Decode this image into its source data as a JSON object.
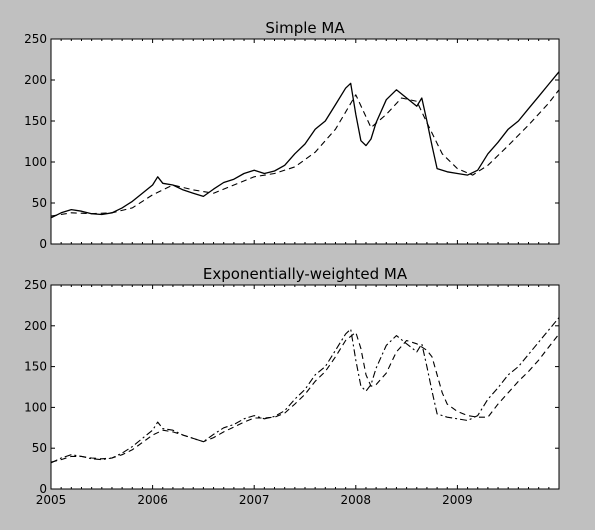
{
  "chart_data": [
    {
      "type": "line",
      "title": "Simple MA",
      "xlabel": "",
      "ylabel": "",
      "ylim": [
        0,
        250
      ],
      "yticks": [
        "0",
        "50",
        "100",
        "150",
        "200",
        "250"
      ],
      "xlim": [
        2005.0,
        2010.0
      ],
      "xticks": [],
      "grid": false,
      "legend": "none",
      "series": [
        {
          "style": "solid",
          "x": [
            2005.0,
            2005.1,
            2005.2,
            2005.3,
            2005.4,
            2005.5,
            2005.6,
            2005.7,
            2005.8,
            2005.9,
            2006.0,
            2006.05,
            2006.1,
            2006.2,
            2006.3,
            2006.4,
            2006.5,
            2006.6,
            2006.7,
            2006.8,
            2006.9,
            2007.0,
            2007.1,
            2007.2,
            2007.3,
            2007.4,
            2007.5,
            2007.6,
            2007.7,
            2007.8,
            2007.9,
            2007.95,
            2008.0,
            2008.05,
            2008.1,
            2008.15,
            2008.2,
            2008.3,
            2008.4,
            2008.5,
            2008.6,
            2008.65,
            2008.7,
            2008.75,
            2008.8,
            2008.9,
            2009.0,
            2009.1,
            2009.2,
            2009.3,
            2009.4,
            2009.5,
            2009.6,
            2009.7,
            2009.8,
            2009.9,
            2010.0
          ],
          "y": [
            32,
            38,
            42,
            40,
            37,
            36,
            38,
            44,
            52,
            62,
            72,
            82,
            74,
            72,
            66,
            62,
            58,
            67,
            75,
            79,
            86,
            90,
            86,
            89,
            96,
            110,
            122,
            140,
            150,
            170,
            190,
            196,
            158,
            126,
            120,
            128,
            148,
            176,
            188,
            178,
            168,
            178,
            150,
            120,
            92,
            88,
            86,
            84,
            90,
            110,
            124,
            140,
            150,
            165,
            180,
            195,
            210
          ]
        },
        {
          "style": "dashed",
          "x": [
            2005.0,
            2005.2,
            2005.4,
            2005.6,
            2005.8,
            2006.0,
            2006.2,
            2006.4,
            2006.6,
            2006.8,
            2007.0,
            2007.2,
            2007.4,
            2007.6,
            2007.8,
            2008.0,
            2008.15,
            2008.3,
            2008.45,
            2008.6,
            2008.7,
            2008.85,
            2009.0,
            2009.15,
            2009.3,
            2009.5,
            2009.7,
            2009.9,
            2010.0
          ],
          "y": [
            34,
            38,
            37,
            38,
            44,
            60,
            72,
            66,
            62,
            72,
            82,
            86,
            94,
            112,
            140,
            182,
            142,
            158,
            178,
            174,
            148,
            110,
            92,
            84,
            96,
            120,
            145,
            172,
            188
          ]
        }
      ]
    },
    {
      "type": "line",
      "title": "Exponentially-weighted MA",
      "xlabel": "",
      "ylabel": "",
      "ylim": [
        0,
        250
      ],
      "yticks": [
        "0",
        "50",
        "100",
        "150",
        "200",
        "250"
      ],
      "xlim": [
        2005.0,
        2010.0
      ],
      "xticks": [
        "2005",
        "2006",
        "2007",
        "2008",
        "2009"
      ],
      "grid": false,
      "legend": "none",
      "series": [
        {
          "style": "dashdot",
          "x": [
            2005.0,
            2005.1,
            2005.2,
            2005.3,
            2005.4,
            2005.5,
            2005.6,
            2005.7,
            2005.8,
            2005.9,
            2006.0,
            2006.05,
            2006.1,
            2006.2,
            2006.3,
            2006.4,
            2006.5,
            2006.6,
            2006.7,
            2006.8,
            2006.9,
            2007.0,
            2007.1,
            2007.2,
            2007.3,
            2007.4,
            2007.5,
            2007.6,
            2007.7,
            2007.8,
            2007.9,
            2007.95,
            2008.0,
            2008.05,
            2008.1,
            2008.15,
            2008.2,
            2008.3,
            2008.4,
            2008.5,
            2008.6,
            2008.65,
            2008.7,
            2008.75,
            2008.8,
            2008.9,
            2009.0,
            2009.1,
            2009.2,
            2009.3,
            2009.4,
            2009.5,
            2009.6,
            2009.7,
            2009.8,
            2009.9,
            2010.0
          ],
          "y": [
            32,
            38,
            42,
            40,
            37,
            36,
            38,
            44,
            52,
            62,
            72,
            82,
            74,
            72,
            66,
            62,
            58,
            67,
            75,
            79,
            86,
            90,
            86,
            89,
            96,
            110,
            122,
            140,
            150,
            170,
            190,
            196,
            158,
            126,
            120,
            128,
            148,
            176,
            188,
            178,
            168,
            178,
            150,
            120,
            92,
            88,
            86,
            84,
            90,
            110,
            124,
            140,
            150,
            165,
            180,
            195,
            210
          ]
        },
        {
          "style": "dashed",
          "x": [
            2005.0,
            2005.1,
            2005.2,
            2005.3,
            2005.4,
            2005.5,
            2005.6,
            2005.7,
            2005.8,
            2005.9,
            2006.0,
            2006.1,
            2006.2,
            2006.3,
            2006.4,
            2006.5,
            2006.6,
            2006.7,
            2006.8,
            2006.9,
            2007.0,
            2007.1,
            2007.2,
            2007.3,
            2007.4,
            2007.5,
            2007.6,
            2007.7,
            2007.8,
            2007.9,
            2008.0,
            2008.05,
            2008.1,
            2008.15,
            2008.2,
            2008.3,
            2008.4,
            2008.5,
            2008.6,
            2008.7,
            2008.75,
            2008.8,
            2008.85,
            2008.9,
            2009.0,
            2009.1,
            2009.2,
            2009.3,
            2009.4,
            2009.5,
            2009.6,
            2009.7,
            2009.8,
            2009.9,
            2010.0
          ],
          "y": [
            33,
            36,
            40,
            40,
            38,
            37,
            38,
            42,
            48,
            57,
            66,
            72,
            70,
            66,
            62,
            58,
            63,
            70,
            76,
            82,
            87,
            87,
            88,
            93,
            104,
            116,
            132,
            144,
            162,
            182,
            192,
            172,
            140,
            126,
            128,
            142,
            168,
            182,
            178,
            170,
            162,
            140,
            118,
            104,
            95,
            90,
            88,
            88,
            104,
            118,
            132,
            144,
            158,
            174,
            190
          ]
        }
      ]
    }
  ]
}
